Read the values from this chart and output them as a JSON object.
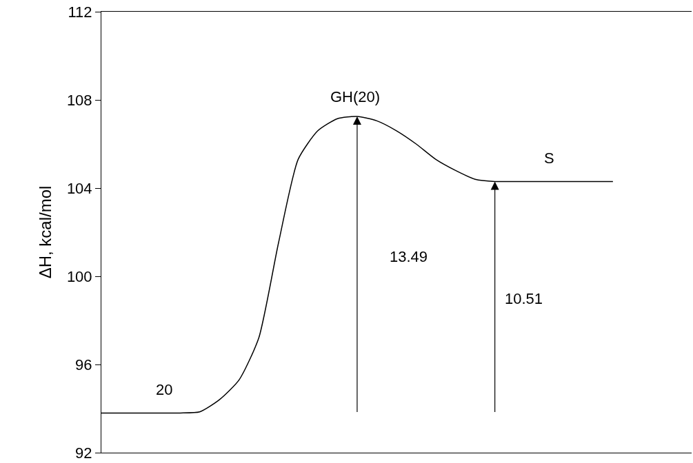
{
  "chart_data": {
    "type": "line",
    "ylabel": "ΔH, kcal/mol",
    "categories": [
      null,
      null,
      null,
      null,
      null,
      null,
      null,
      null,
      null,
      null,
      null,
      null,
      null,
      null,
      null,
      null,
      null,
      null,
      null,
      null,
      null,
      null,
      null,
      null,
      null,
      null,
      null,
      null,
      null,
      null,
      null
    ],
    "series": [
      {
        "color": "#000000",
        "values": [
          93.8,
          93.8,
          93.8,
          93.8,
          93.8,
          93.85,
          94.4,
          95.3,
          97.2,
          101.5,
          105.3,
          106.6,
          107.15,
          107.25,
          107.05,
          106.6,
          106.0,
          105.3,
          104.8,
          104.4,
          104.3,
          104.3,
          104.3,
          104.3,
          104.3,
          104.3,
          104.3,
          null,
          null,
          null,
          null
        ]
      }
    ],
    "ylim": [
      92,
      112
    ],
    "yticks": [
      92,
      96,
      100,
      104,
      108,
      112
    ],
    "marker": "none",
    "line_style": "solid",
    "annotations": [
      "20",
      "GH(20)",
      "S",
      "13.49",
      "10.51"
    ]
  }
}
